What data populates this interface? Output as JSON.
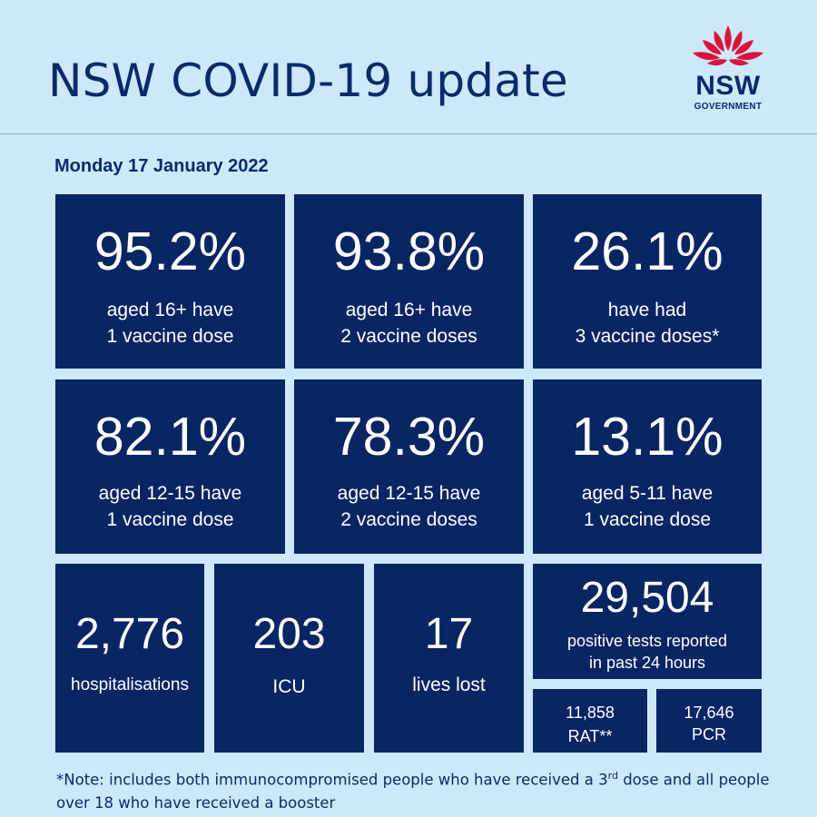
{
  "header": {
    "title": "NSW COVID-19 update",
    "logo_text": "NSW",
    "logo_subtext": "GOVERNMENT",
    "logo_icon": "waratah-flower-icon"
  },
  "date": "Monday 17 January 2022",
  "vaccination": [
    {
      "value": "95.2%",
      "line1": "aged 16+ have",
      "line2": "1 vaccine dose"
    },
    {
      "value": "93.8%",
      "line1": "aged 16+ have",
      "line2": "2 vaccine doses"
    },
    {
      "value": "26.1%",
      "line1": "have had",
      "line2": "3 vaccine doses*"
    },
    {
      "value": "82.1%",
      "line1": "aged 12-15 have",
      "line2": "1 vaccine dose"
    },
    {
      "value": "78.3%",
      "line1": "aged 12-15 have",
      "line2": "2 vaccine doses"
    },
    {
      "value": "13.1%",
      "line1": "aged 5-11 have",
      "line2": "1 vaccine dose"
    }
  ],
  "hospital": {
    "hospitalisations_value": "2,776",
    "hospitalisations_label": "hospitalisations",
    "icu_value": "203",
    "icu_label": "ICU",
    "deaths_value": "17",
    "deaths_label": "lives lost"
  },
  "tests": {
    "total_value": "29,504",
    "total_line1": "positive tests reported",
    "total_line2": "in past 24 hours",
    "rat_value": "11,858",
    "rat_label": "RAT**",
    "pcr_value": "17,646",
    "pcr_label": "PCR"
  },
  "note": {
    "part1": "*Note: includes both immunocompromised people who have received a 3",
    "sup": "rd",
    "part2": " dose and all people over 18 who have received a booster"
  },
  "colors": {
    "background": "#cde8f8",
    "tile": "#0a2563",
    "text_dark": "#0b2a6b",
    "logo_red": "#d7153a"
  }
}
